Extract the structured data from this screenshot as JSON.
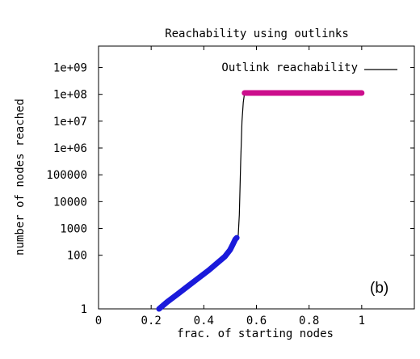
{
  "chart_data": {
    "type": "line",
    "title": "Reachability using outlinks",
    "xlabel": "frac. of starting nodes",
    "ylabel": "number of nodes reached",
    "xlim": [
      0,
      1.2
    ],
    "ylim_log10": [
      0,
      9.8
    ],
    "y_scale": "log",
    "x_ticks": [
      {
        "value": 0,
        "label": "0"
      },
      {
        "value": 0.2,
        "label": "0.2"
      },
      {
        "value": 0.4,
        "label": "0.4"
      },
      {
        "value": 0.6,
        "label": "0.6"
      },
      {
        "value": 0.8,
        "label": "0.8"
      },
      {
        "value": 1.0,
        "label": "1"
      }
    ],
    "y_ticks": [
      {
        "log10": 0,
        "label": "1"
      },
      {
        "log10": 2,
        "label": "100"
      },
      {
        "log10": 3,
        "label": "1000"
      },
      {
        "log10": 4,
        "label": "10000"
      },
      {
        "log10": 5,
        "label": "100000"
      },
      {
        "log10": 6,
        "label": "1e+06"
      },
      {
        "log10": 7,
        "label": "1e+07"
      },
      {
        "log10": 8,
        "label": "1e+08"
      },
      {
        "log10": 9,
        "label": "1e+09"
      }
    ],
    "legend": {
      "label": "Outlink reachability",
      "placement": "top-right"
    },
    "panel_label": "(b)",
    "grid": false,
    "series": [
      {
        "name": "Outlink reachability",
        "color": "#000000",
        "points": [
          [
            0.525,
            2.6
          ],
          [
            0.53,
            2.6
          ],
          [
            0.535,
            3.5
          ],
          [
            0.54,
            5.5
          ],
          [
            0.545,
            7.0
          ],
          [
            0.55,
            7.7
          ],
          [
            0.555,
            8.05
          ]
        ]
      },
      {
        "color": "#1a1adb",
        "points": [
          [
            0.23,
            0.0
          ],
          [
            0.26,
            0.25
          ],
          [
            0.3,
            0.55
          ],
          [
            0.34,
            0.85
          ],
          [
            0.38,
            1.15
          ],
          [
            0.42,
            1.45
          ],
          [
            0.45,
            1.7
          ],
          [
            0.48,
            1.95
          ],
          [
            0.5,
            2.2
          ],
          [
            0.51,
            2.4
          ],
          [
            0.52,
            2.6
          ],
          [
            0.525,
            2.65
          ]
        ]
      },
      {
        "color": "#cc0e8c",
        "points": [
          [
            0.555,
            8.05
          ],
          [
            1.0,
            8.05
          ]
        ]
      }
    ]
  }
}
